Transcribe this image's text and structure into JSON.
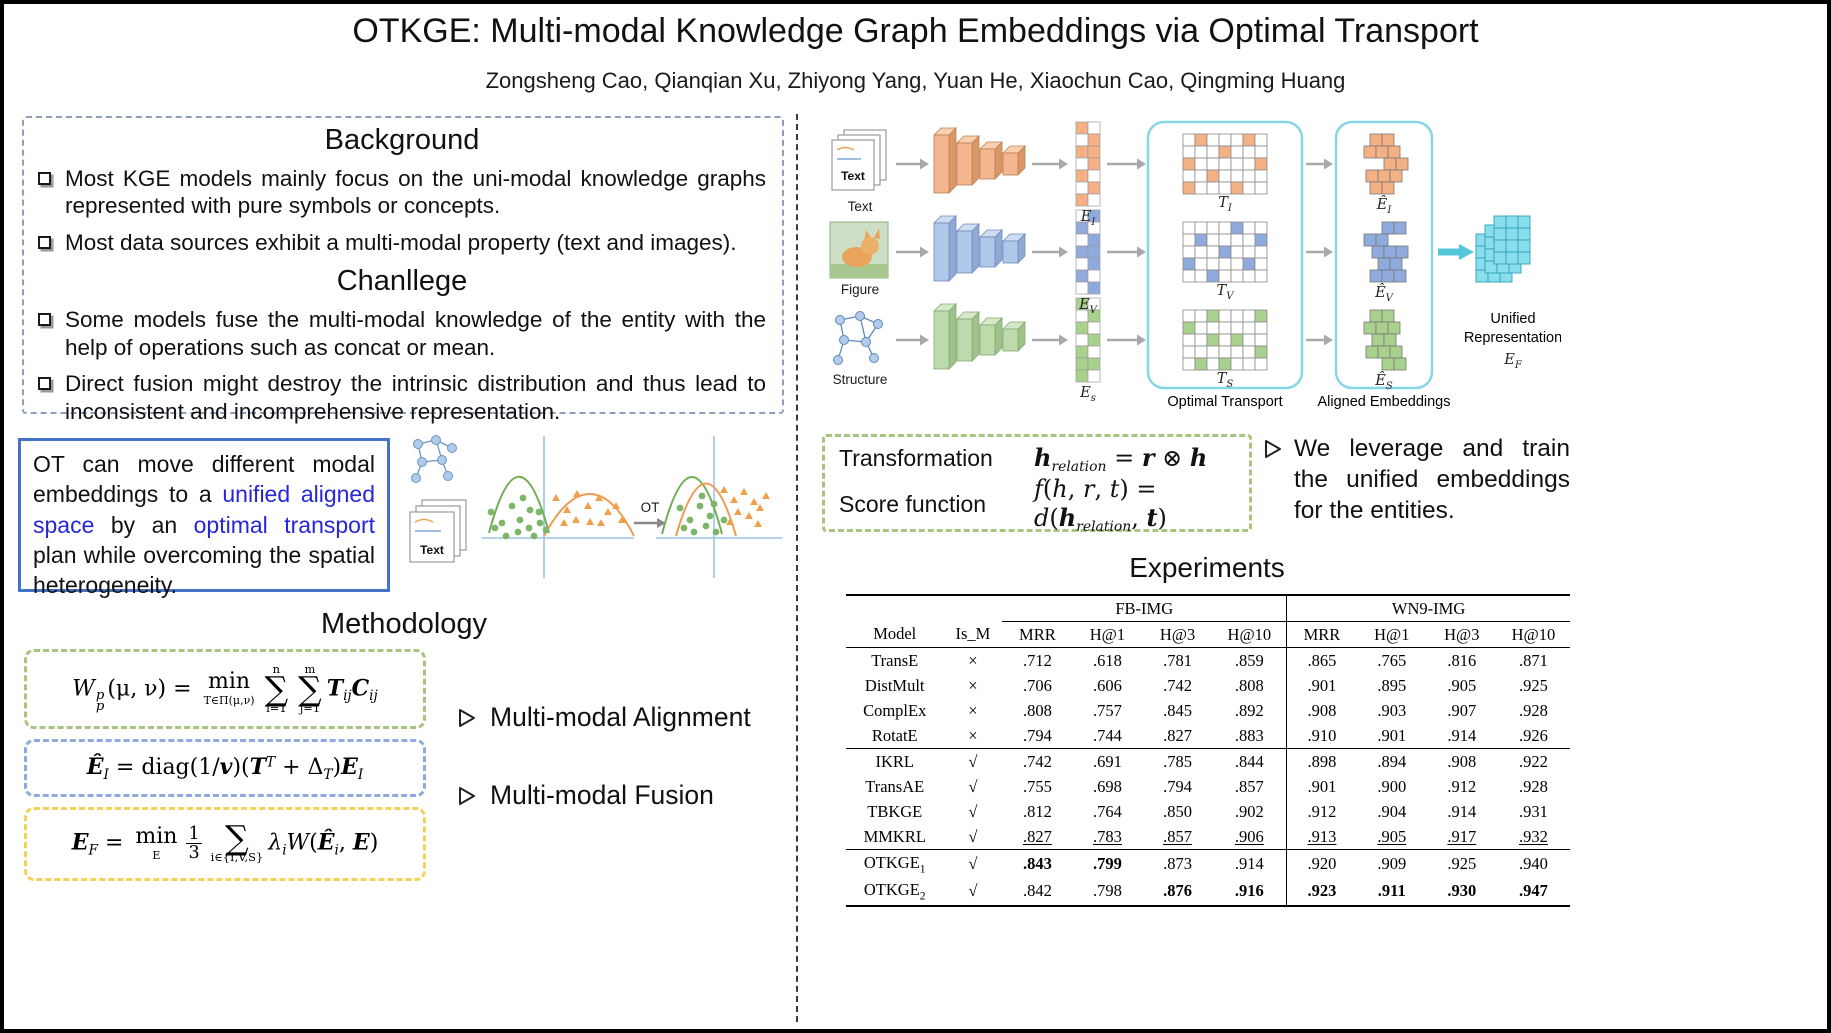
{
  "title": "OTKGE: Multi-modal Knowledge Graph Embeddings via Optimal Transport",
  "authors": "Zongsheng Cao, Qianqian Xu, Zhiyong Yang, Yuan He, Xiaochun Cao, Qingming Huang",
  "colors": {
    "link_blue": "#2626D8",
    "ot_box_border": "#4472C4",
    "green_dash": "#A9C47F",
    "blue_dash": "#8FAADC",
    "yellow_dash": "#F2D258",
    "cyan_accent": "#55C7DB"
  },
  "background": {
    "heading": "Background",
    "items": [
      "Most KGE models mainly focus on the uni-modal knowledge graphs represented with pure symbols or concepts.",
      "Most data sources exhibit a multi-modal property (text and images)."
    ],
    "challenge_heading": "Chanllege",
    "challenge_items": [
      "Some models fuse the multi-modal knowledge of the entity with the help of operations such as concat or mean.",
      "Direct fusion might destroy the intrinsic distribution and thus lead to inconsistent and incomprehensive representation."
    ]
  },
  "ot_note": {
    "segments": [
      {
        "t": "OT can move different modal embeddings to a "
      },
      {
        "t": "unified aligned space",
        "s": "blue"
      },
      {
        "t": " by an "
      },
      {
        "t": "optimal transport",
        "s": "blue"
      },
      {
        "t": " plan while overcoming the spatial heterogeneity."
      }
    ],
    "ot_label": "OT"
  },
  "methodology": {
    "heading": "Methodology",
    "formulas": {
      "alignment": [
        {
          "t": "W",
          "s": "i"
        },
        {
          "ss": [
            "p",
            "p"
          ]
        },
        {
          "t": "(μ, ν) = "
        },
        {
          "stack": [
            "min",
            "T∈Π(μ,ν)"
          ],
          "s": "under"
        },
        {
          "stack": [
            "n",
            "∑",
            "i=1"
          ],
          "s": "sum"
        },
        {
          "stack": [
            "m",
            "∑",
            "j=1"
          ],
          "s": "sum"
        },
        {
          "t": "T",
          "s": "bi"
        },
        {
          "t": "ij",
          "s": "sub"
        },
        {
          "t": "C",
          "s": "bi"
        },
        {
          "t": "ij",
          "s": "sub"
        }
      ],
      "projection": [
        {
          "t": "Ê",
          "s": "bi"
        },
        {
          "t": "I",
          "s": "sub"
        },
        {
          "t": " = diag(1/"
        },
        {
          "t": "v",
          "s": "bi"
        },
        {
          "t": ")("
        },
        {
          "t": "T",
          "s": "bi"
        },
        {
          "t": "T",
          "s": "sup"
        },
        {
          "t": " + Δ"
        },
        {
          "t": "T",
          "s": "sub"
        },
        {
          "t": ")"
        },
        {
          "t": "E",
          "s": "bi"
        },
        {
          "t": "I",
          "s": "sub"
        }
      ],
      "fusion": [
        {
          "t": "E",
          "s": "bi"
        },
        {
          "t": "F",
          "s": "sub"
        },
        {
          "t": " = "
        },
        {
          "stack": [
            "min",
            "E"
          ],
          "s": "under"
        },
        {
          "frac": [
            "1",
            "3"
          ]
        },
        {
          "stack": [
            "",
            "∑",
            "i∈{I,V,S}"
          ],
          "s": "sum"
        },
        {
          "t": "λ",
          "s": "i"
        },
        {
          "t": "i",
          "s": "sub"
        },
        {
          "t": "W",
          "s": "i"
        },
        {
          "t": "("
        },
        {
          "t": "Ê",
          "s": "bi"
        },
        {
          "t": "i",
          "s": "sub"
        },
        {
          "t": ", "
        },
        {
          "t": "E",
          "s": "bi"
        },
        {
          "t": ")"
        }
      ]
    },
    "bullets": [
      {
        "text": "Multi-modal Alignment"
      },
      {
        "text": "Multi-modal Fusion"
      }
    ]
  },
  "architecture": {
    "inputs": [
      {
        "label": "Text"
      },
      {
        "label": "Figure"
      },
      {
        "label": "Structure"
      }
    ],
    "icon_text": "Text",
    "embedding_labels": [
      {
        "main": "E",
        "sub": "I"
      },
      {
        "main": "E",
        "sub": "V"
      },
      {
        "main": "E",
        "sub": "s"
      }
    ],
    "transport_labels": [
      {
        "main": "T",
        "sub": "I"
      },
      {
        "main": "T",
        "sub": "V"
      },
      {
        "main": "T",
        "sub": "S"
      }
    ],
    "aligned_labels": [
      {
        "main": "Ê",
        "sub": "I"
      },
      {
        "main": "Ê",
        "sub": "V"
      },
      {
        "main": "Ê",
        "sub": "S"
      }
    ],
    "ot_box_label": "Optimal Transport",
    "aligned_box_label": "Aligned Embeddings",
    "unified_label_line1": "Unified",
    "unified_label_line2": "Representation",
    "unified_sub": {
      "main": "E",
      "sub": "F"
    }
  },
  "model": {
    "transformation_label": "Transformation",
    "transformation_formula": [
      {
        "t": "h",
        "s": "bi"
      },
      {
        "t": "relation",
        "s": "isub"
      },
      {
        "t": " = "
      },
      {
        "t": "r",
        "s": "bi"
      },
      {
        "t": " ⊗ "
      },
      {
        "t": "h",
        "s": "bi"
      }
    ],
    "score_label": "Score function",
    "score_formula": [
      {
        "t": "f",
        "s": "i"
      },
      {
        "t": "("
      },
      {
        "t": "h",
        "s": "i"
      },
      {
        "t": ", "
      },
      {
        "t": "r",
        "s": "i"
      },
      {
        "t": ", "
      },
      {
        "t": "t",
        "s": "i"
      },
      {
        "t": ") = "
      },
      {
        "t": "d",
        "s": "i"
      },
      {
        "t": "("
      },
      {
        "t": "h",
        "s": "bi"
      },
      {
        "t": "relation",
        "s": "isub"
      },
      {
        "t": ", "
      },
      {
        "t": "t",
        "s": "bi"
      },
      {
        "t": ")"
      }
    ],
    "note": "We leverage and train the unified embeddings for the entities."
  },
  "experiments": {
    "heading": "Experiments",
    "table": {
      "group_headers": [
        {
          "label": "FB-IMG",
          "span": 4
        },
        {
          "label": "WN9-IMG",
          "span": 4
        }
      ],
      "columns": [
        "Model",
        "Is_M",
        "MRR",
        "H@1",
        "H@3",
        "H@10",
        "MRR",
        "H@1",
        "H@3",
        "H@10"
      ],
      "rows": [
        {
          "model": "TransE",
          "is_m": "×",
          "values": [
            ".712",
            ".618",
            ".781",
            ".859",
            ".865",
            ".765",
            ".816",
            ".871"
          ]
        },
        {
          "model": "DistMult",
          "is_m": "×",
          "values": [
            ".706",
            ".606",
            ".742",
            ".808",
            ".901",
            ".895",
            ".905",
            ".925"
          ]
        },
        {
          "model": "ComplEx",
          "is_m": "×",
          "values": [
            ".808",
            ".757",
            ".845",
            ".892",
            ".908",
            ".903",
            ".907",
            ".928"
          ]
        },
        {
          "model": "RotatE",
          "is_m": "×",
          "values": [
            ".794",
            ".744",
            ".827",
            ".883",
            ".910",
            ".901",
            ".914",
            ".926"
          ]
        },
        {
          "model": "IKRL",
          "is_m": "√",
          "values": [
            ".742",
            ".691",
            ".785",
            ".844",
            ".898",
            ".894",
            ".908",
            ".922"
          ],
          "group_start": true
        },
        {
          "model": "TransAE",
          "is_m": "√",
          "values": [
            ".755",
            ".698",
            ".794",
            ".857",
            ".901",
            ".900",
            ".912",
            ".928"
          ]
        },
        {
          "model": "TBKGE",
          "is_m": "√",
          "values": [
            ".812",
            ".764",
            ".850",
            ".902",
            ".912",
            ".904",
            ".914",
            ".931"
          ]
        },
        {
          "model": "MMKRL",
          "is_m": "√",
          "values": [
            ".827",
            ".783",
            ".857",
            ".906",
            ".913",
            ".905",
            ".917",
            ".932"
          ],
          "underline": [
            0,
            1,
            2,
            3,
            4,
            5,
            6,
            7
          ]
        },
        {
          "model": "OTKGE",
          "model_sub": "1",
          "is_m": "√",
          "values": [
            ".843",
            ".799",
            ".873",
            ".914",
            ".920",
            ".909",
            ".925",
            ".940"
          ],
          "bold": [
            0,
            1
          ],
          "group_start": true
        },
        {
          "model": "OTKGE",
          "model_sub": "2",
          "is_m": "√",
          "values": [
            ".842",
            ".798",
            ".876",
            ".916",
            ".923",
            ".911",
            ".930",
            ".947"
          ],
          "bold": [
            2,
            3,
            4,
            5,
            6,
            7
          ]
        }
      ]
    }
  }
}
